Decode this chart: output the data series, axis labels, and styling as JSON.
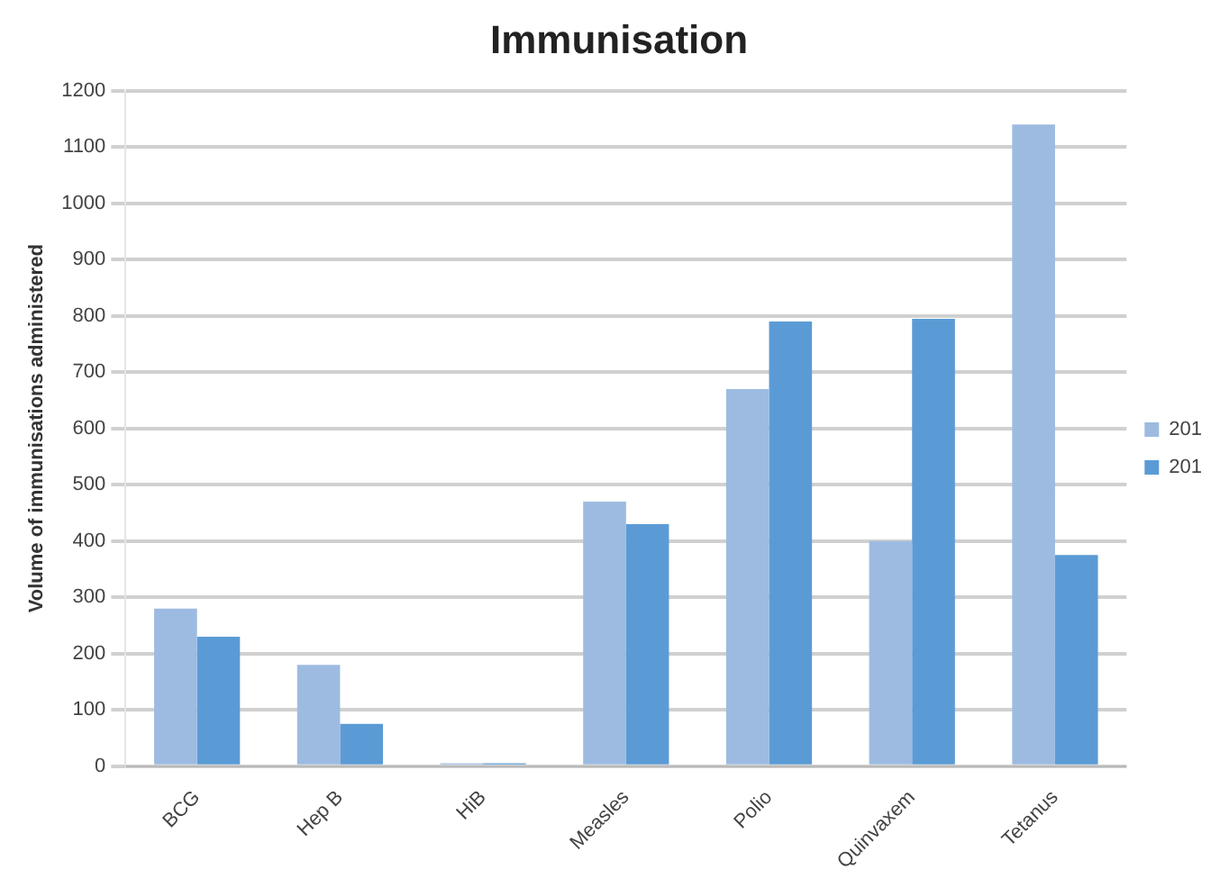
{
  "chart_data": {
    "type": "bar",
    "title": "Immunisation",
    "ylabel": "Volume of immunisations administered",
    "categories": [
      "BCG",
      "Hep B",
      "HiB",
      "Measles",
      "Polio",
      "Quinvaxem",
      "Tetanus"
    ],
    "series": [
      {
        "name": "201",
        "color": "#9dbbe0",
        "values": [
          280,
          180,
          5,
          470,
          670,
          400,
          1140
        ]
      },
      {
        "name": "201",
        "color": "#5b9bd5",
        "values": [
          230,
          75,
          5,
          430,
          790,
          795,
          375
        ]
      }
    ],
    "ylim": [
      0,
      1200
    ],
    "yticks": [
      0,
      100,
      200,
      300,
      400,
      500,
      600,
      700,
      800,
      900,
      1000,
      1100,
      1200
    ],
    "grid": "y",
    "legend": "right"
  }
}
